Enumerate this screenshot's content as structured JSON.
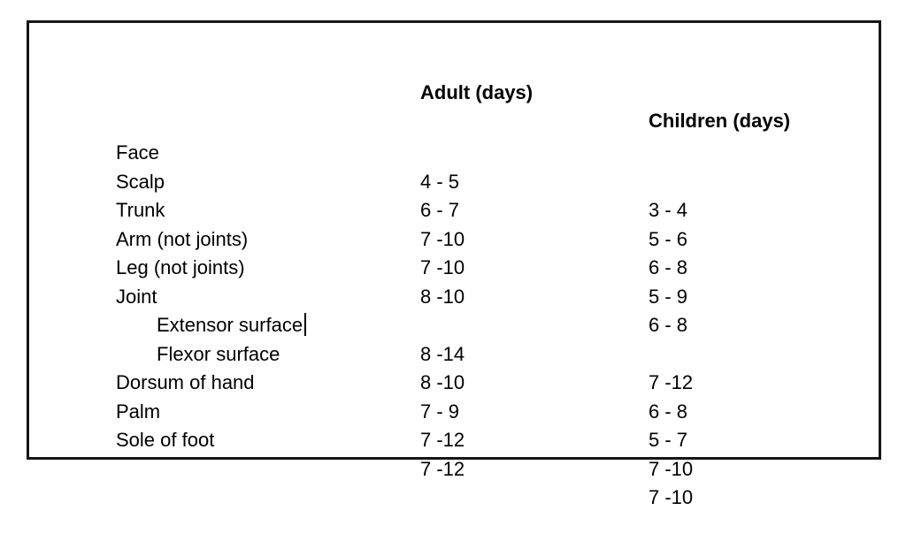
{
  "table": {
    "headers": {
      "adult": "Adult (days)",
      "children": "Children (days)"
    },
    "rows": [
      {
        "label": "Face",
        "adult": "4 - 5",
        "children": "3 - 4"
      },
      {
        "label": "Scalp",
        "adult": "6 - 7",
        "children": "5 - 6"
      },
      {
        "label": "Trunk",
        "adult": "7 -10",
        "children": "6 - 8"
      },
      {
        "label": "Arm (not joints)",
        "adult": "7 -10",
        "children": "5 - 9"
      },
      {
        "label": "Leg (not joints)",
        "adult": "8 -10",
        "children": "6 - 8"
      },
      {
        "label": "Joint",
        "adult": "",
        "children": ""
      },
      {
        "label": "Extensor surface",
        "adult": "8 -14",
        "children": "7 -12"
      },
      {
        "label": "Flexor surface",
        "adult": "8 -10",
        "children": "6 - 8"
      },
      {
        "label": "Dorsum of hand",
        "adult": "7 - 9",
        "children": "5 - 7"
      },
      {
        "label": "Palm",
        "adult": "7 -12",
        "children": "7 -10"
      },
      {
        "label": "Sole of foot",
        "adult": "7 -12",
        "children": "7 -10"
      }
    ]
  }
}
